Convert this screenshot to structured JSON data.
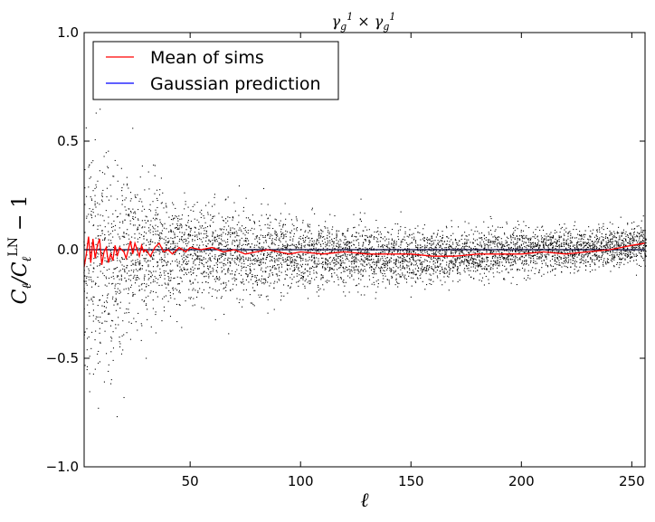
{
  "chart_data": {
    "type": "scatter",
    "title": "γg1 × γg1",
    "xlabel": "ℓ",
    "ylabel": "Cℓ/CℓLN − 1",
    "xlim": [
      2,
      256
    ],
    "ylim": [
      -1.0,
      1.0
    ],
    "xticks": [
      50,
      100,
      150,
      200,
      250
    ],
    "yticks": [
      1.0,
      0.5,
      0.0,
      -0.5,
      -1.0
    ],
    "xtick_labels": [
      "50",
      "100",
      "150",
      "200",
      "250"
    ],
    "ytick_labels": [
      "1.0",
      "0.5",
      "0.0",
      "−0.5",
      "−1.0"
    ],
    "grid": false,
    "legend": {
      "position": "top-left",
      "entries": [
        {
          "label": "Mean of sims",
          "color": "#ff0000"
        },
        {
          "label": "Gaussian prediction",
          "color": "#0000ff"
        }
      ]
    },
    "series": [
      {
        "name": "Mean of sims",
        "type": "line",
        "color": "#ff0000",
        "x": [
          2,
          3,
          4,
          5,
          6,
          7,
          8,
          9,
          10,
          11,
          12,
          13,
          14,
          15,
          16,
          17,
          18,
          19,
          20,
          21,
          22,
          23,
          24,
          25,
          26,
          27,
          28,
          29,
          30,
          32,
          34,
          36,
          38,
          40,
          42,
          45,
          48,
          50,
          55,
          60,
          65,
          70,
          75,
          80,
          85,
          90,
          95,
          100,
          110,
          120,
          130,
          140,
          150,
          160,
          170,
          180,
          190,
          200,
          210,
          220,
          230,
          240,
          245,
          250,
          256
        ],
        "y": [
          -0.08,
          -0.02,
          0.06,
          -0.06,
          0.05,
          -0.04,
          0.02,
          0.05,
          -0.07,
          -0.01,
          0.01,
          -0.06,
          -0.02,
          -0.05,
          0.02,
          -0.03,
          0.01,
          0.0,
          -0.01,
          -0.04,
          0.0,
          0.04,
          -0.02,
          0.03,
          0.0,
          -0.03,
          0.02,
          -0.01,
          0.0,
          -0.03,
          0.01,
          0.03,
          -0.01,
          0.0,
          -0.02,
          0.01,
          -0.01,
          0.01,
          0.0,
          0.01,
          -0.01,
          0.0,
          -0.02,
          -0.01,
          0.0,
          -0.01,
          -0.02,
          -0.01,
          -0.02,
          -0.01,
          -0.02,
          -0.02,
          -0.02,
          -0.03,
          -0.03,
          -0.02,
          -0.02,
          -0.02,
          -0.01,
          -0.02,
          -0.01,
          0.0,
          0.01,
          0.02,
          0.03
        ]
      },
      {
        "name": "Gaussian prediction",
        "type": "line",
        "color": "#0000ff",
        "x": [
          2,
          256
        ],
        "y": [
          0.0,
          0.0
        ]
      },
      {
        "name": "",
        "type": "scatter",
        "color": "#000000",
        "description_of_spread": "individual simulations",
        "spread_at_l": [
          [
            5,
            0.55
          ],
          [
            20,
            0.35
          ],
          [
            50,
            0.2
          ],
          [
            100,
            0.14
          ],
          [
            150,
            0.11
          ],
          [
            200,
            0.09
          ],
          [
            256,
            0.08
          ]
        ],
        "center_at_l": [
          [
            5,
            -0.05
          ],
          [
            50,
            -0.01
          ],
          [
            150,
            -0.03
          ],
          [
            256,
            0.02
          ]
        ],
        "points_per_l": 22
      }
    ]
  }
}
